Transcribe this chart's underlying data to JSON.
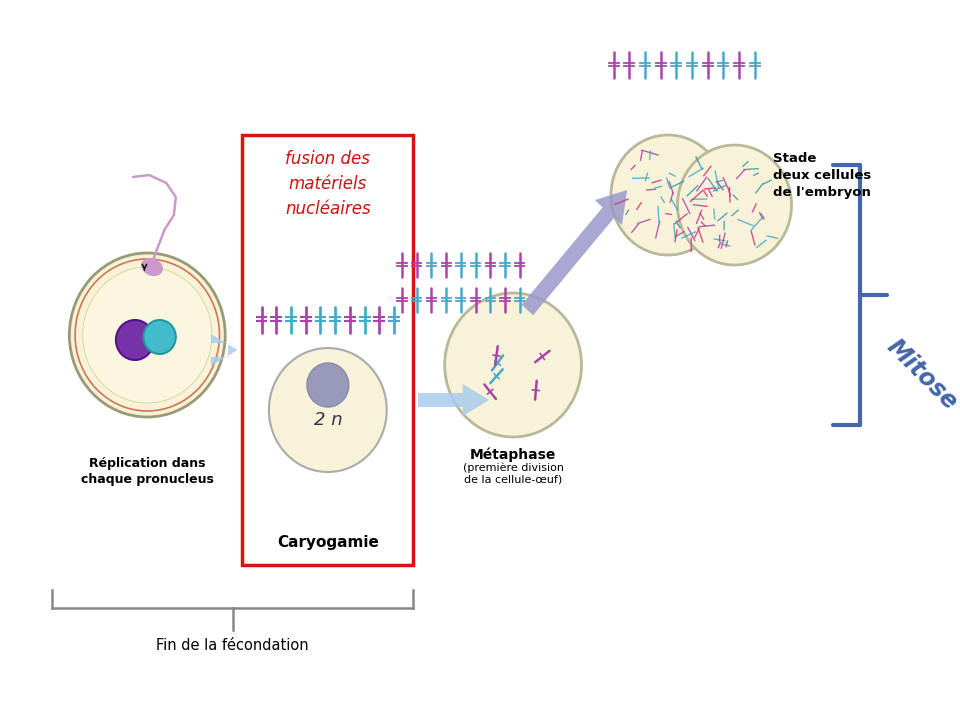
{
  "bg_color": "#ffffff",
  "fig_width": 9.6,
  "fig_height": 7.2,
  "dpi": 100,
  "text_replication": "Réplication dans\nchaque pronucleus",
  "text_caryogamie": "Caryogamie",
  "text_2n": "2 n",
  "text_metaphase": "Métaphase",
  "text_metaphase2": "(première division\nde la cellule-œuf)",
  "text_stade": "Stade\ndeux cellules\nde l'embryon",
  "text_mitose": "Mitose",
  "text_fusion": "fusion des\nmatériels\nnucléaires",
  "text_fin": "Fin de la fécondation",
  "red_box_color": "#dd1111",
  "blue_bracket_color": "#4466aa",
  "gray_bracket_color": "#888888",
  "arrow_color": "#aaccee",
  "purple_arrow_color": "#9999cc",
  "cell_fill": "#f8f3cc",
  "cell_edge": "#b8b89a",
  "sperm_color": "#cc99cc",
  "nucleus1_color": "#7733aa",
  "nucleus2_color": "#44bbcc",
  "mitose_text_color": "#4466aa",
  "fusion_text_color": "#cc1111",
  "chr_pink": "#aa44aa",
  "chr_cyan": "#44aacc"
}
